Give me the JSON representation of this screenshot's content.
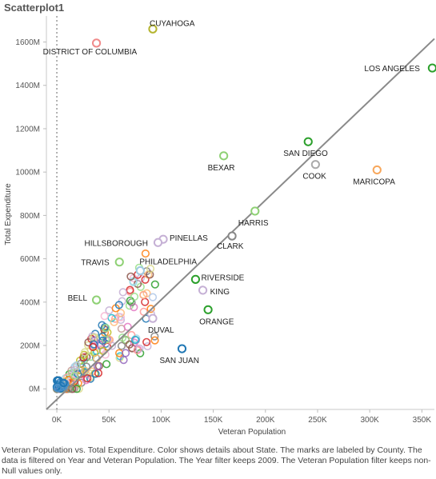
{
  "title": "Scatterplot1",
  "caption": "Veteran Population vs. Total Expenditure.  Color shows details about State.  The marks are labeled by County. The data is filtered on Year and Veteran Population. The Year filter keeps 2009. The Veteran Population filter keeps non-Null values only.",
  "chart_data": {
    "type": "scatter",
    "xlabel": "Veteran Population",
    "ylabel": "Total Expenditure",
    "xlim": [
      -10000,
      362000
    ],
    "ylim": [
      -95,
      1720
    ],
    "x_ticks": [
      0,
      50000,
      100000,
      150000,
      200000,
      250000,
      300000,
      350000
    ],
    "x_tick_labels": [
      "0K",
      "50K",
      "100K",
      "150K",
      "200K",
      "250K",
      "300K",
      "350K"
    ],
    "y_ticks": [
      0,
      200,
      400,
      600,
      800,
      1000,
      1200,
      1400,
      1600
    ],
    "y_tick_labels": [
      "0M",
      "200M",
      "400M",
      "600M",
      "800M",
      "1000M",
      "1200M",
      "1400M",
      "1600M"
    ],
    "trend_line": {
      "x": [
        -10000,
        362000
      ],
      "y": [
        -95,
        1615
      ]
    },
    "zero_line_x": 0,
    "labeled_points": [
      {
        "label": "DISTRICT OF COLUMBIA",
        "x": 38000,
        "y": 1595,
        "color": "#f08a8a"
      },
      {
        "label": "CUYAHOGA",
        "x": 92000,
        "y": 1660,
        "color": "#b5b530"
      },
      {
        "label": "LOS ANGELES",
        "x": 360000,
        "y": 1480,
        "color": "#2ca02c"
      },
      {
        "label": "SAN DIEGO",
        "x": 241000,
        "y": 1140,
        "color": "#2ca02c"
      },
      {
        "label": "BEXAR",
        "x": 160000,
        "y": 1075,
        "color": "#8fd175"
      },
      {
        "label": "COOK",
        "x": 248000,
        "y": 1035,
        "color": "#aaaaaa"
      },
      {
        "label": "MARICOPA",
        "x": 307000,
        "y": 1010,
        "color": "#f7a75c"
      },
      {
        "label": "HARRIS",
        "x": 190000,
        "y": 820,
        "color": "#8fd175"
      },
      {
        "label": "CLARK",
        "x": 168000,
        "y": 705,
        "color": "#888888"
      },
      {
        "label": "PINELLAS",
        "x": 102000,
        "y": 690,
        "color": "#c5b0d5"
      },
      {
        "label": "HILLSBOROUGH",
        "x": 97000,
        "y": 675,
        "color": "#c5b0d5"
      },
      {
        "label": "TRAVIS",
        "x": 60000,
        "y": 585,
        "color": "#8fd175"
      },
      {
        "label": "PHILADELPHIA",
        "x": 80000,
        "y": 545,
        "color": "#9ecae1"
      },
      {
        "label": "RIVERSIDE",
        "x": 133000,
        "y": 505,
        "color": "#2ca02c"
      },
      {
        "label": "KING",
        "x": 140000,
        "y": 455,
        "color": "#c5b0d5"
      },
      {
        "label": "BELL",
        "x": 38000,
        "y": 410,
        "color": "#8fd175"
      },
      {
        "label": "ORANGE",
        "x": 145000,
        "y": 365,
        "color": "#2ca02c"
      },
      {
        "label": "DUVAL",
        "x": 92000,
        "y": 325,
        "color": "#c5b0d5"
      },
      {
        "label": "SAN JUAN",
        "x": 120000,
        "y": 185,
        "color": "#1f77b4"
      }
    ]
  }
}
